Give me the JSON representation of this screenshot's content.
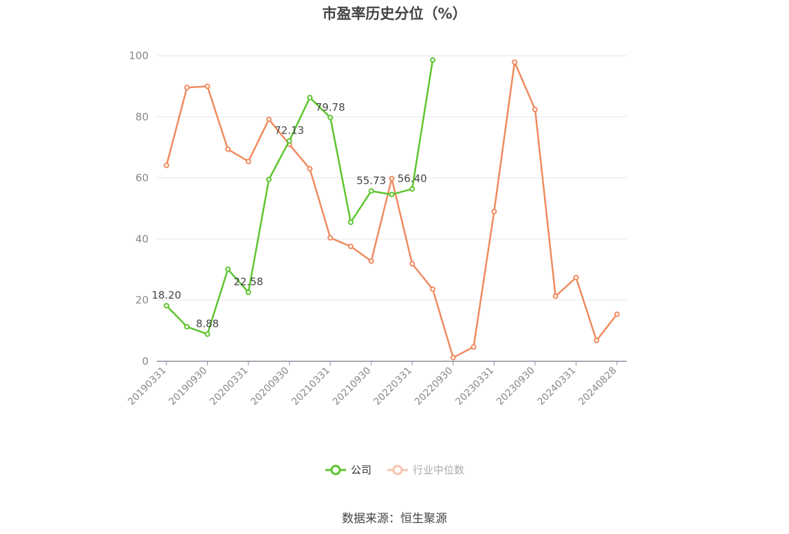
{
  "title": "市盈率历史分位（%）",
  "source": "数据来源：恒生聚源",
  "colors": {
    "company": "#5cc52c",
    "industry": "#f08a5d",
    "grid": "#e3e6ec",
    "axis": "#8a8f9c",
    "label": "#444444",
    "tick": "#888888"
  },
  "chart_data": {
    "type": "line",
    "x": [
      "20190331",
      "20190630",
      "20190930",
      "20191231",
      "20200331",
      "20200630",
      "20200930",
      "20201231",
      "20210331",
      "20210630",
      "20210930",
      "20211231",
      "20220331",
      "20220630",
      "20220930",
      "20221231",
      "20230331",
      "20230630",
      "20230930",
      "20231231",
      "20240331",
      "20240630",
      "20240828"
    ],
    "xtick_labels": [
      "20190331",
      "20190930",
      "20200331",
      "20200930",
      "20210331",
      "20210930",
      "20220331",
      "20220930",
      "20230331",
      "20230930",
      "20240331",
      "20240828"
    ],
    "ylim": [
      0,
      100
    ],
    "yticks": [
      0,
      20,
      40,
      60,
      80,
      100
    ],
    "grid": true,
    "legend_position": "bottom-center",
    "series": [
      {
        "name": "公司",
        "color": "#5cc52c",
        "values": [
          18.2,
          11.3,
          8.88,
          30.1,
          22.58,
          59.5,
          72.13,
          86.3,
          79.78,
          45.5,
          55.73,
          54.6,
          56.4,
          98.6,
          null,
          null,
          null,
          null,
          null,
          null,
          null,
          null,
          null
        ]
      },
      {
        "name": "行业中位数",
        "color": "#f08a5d",
        "values": [
          64.1,
          89.6,
          90.0,
          69.4,
          65.4,
          79.2,
          71.0,
          63.0,
          40.4,
          37.6,
          32.8,
          59.8,
          31.9,
          23.6,
          1.2,
          4.7,
          49.0,
          97.9,
          82.4,
          21.3,
          27.4,
          6.8,
          15.4
        ]
      }
    ],
    "annotations": [
      {
        "series": 0,
        "x": "20190331",
        "text": "18.20"
      },
      {
        "series": 0,
        "x": "20190930",
        "text": "8.88"
      },
      {
        "series": 0,
        "x": "20200331",
        "text": "22.58"
      },
      {
        "series": 0,
        "x": "20200930",
        "text": "72.13"
      },
      {
        "series": 0,
        "x": "20210331",
        "text": "79.78"
      },
      {
        "series": 0,
        "x": "20210930",
        "text": "55.73"
      },
      {
        "series": 0,
        "x": "20220331",
        "text": "56.40"
      }
    ]
  },
  "legend": {
    "company": "公司",
    "industry": "行业中位数"
  }
}
